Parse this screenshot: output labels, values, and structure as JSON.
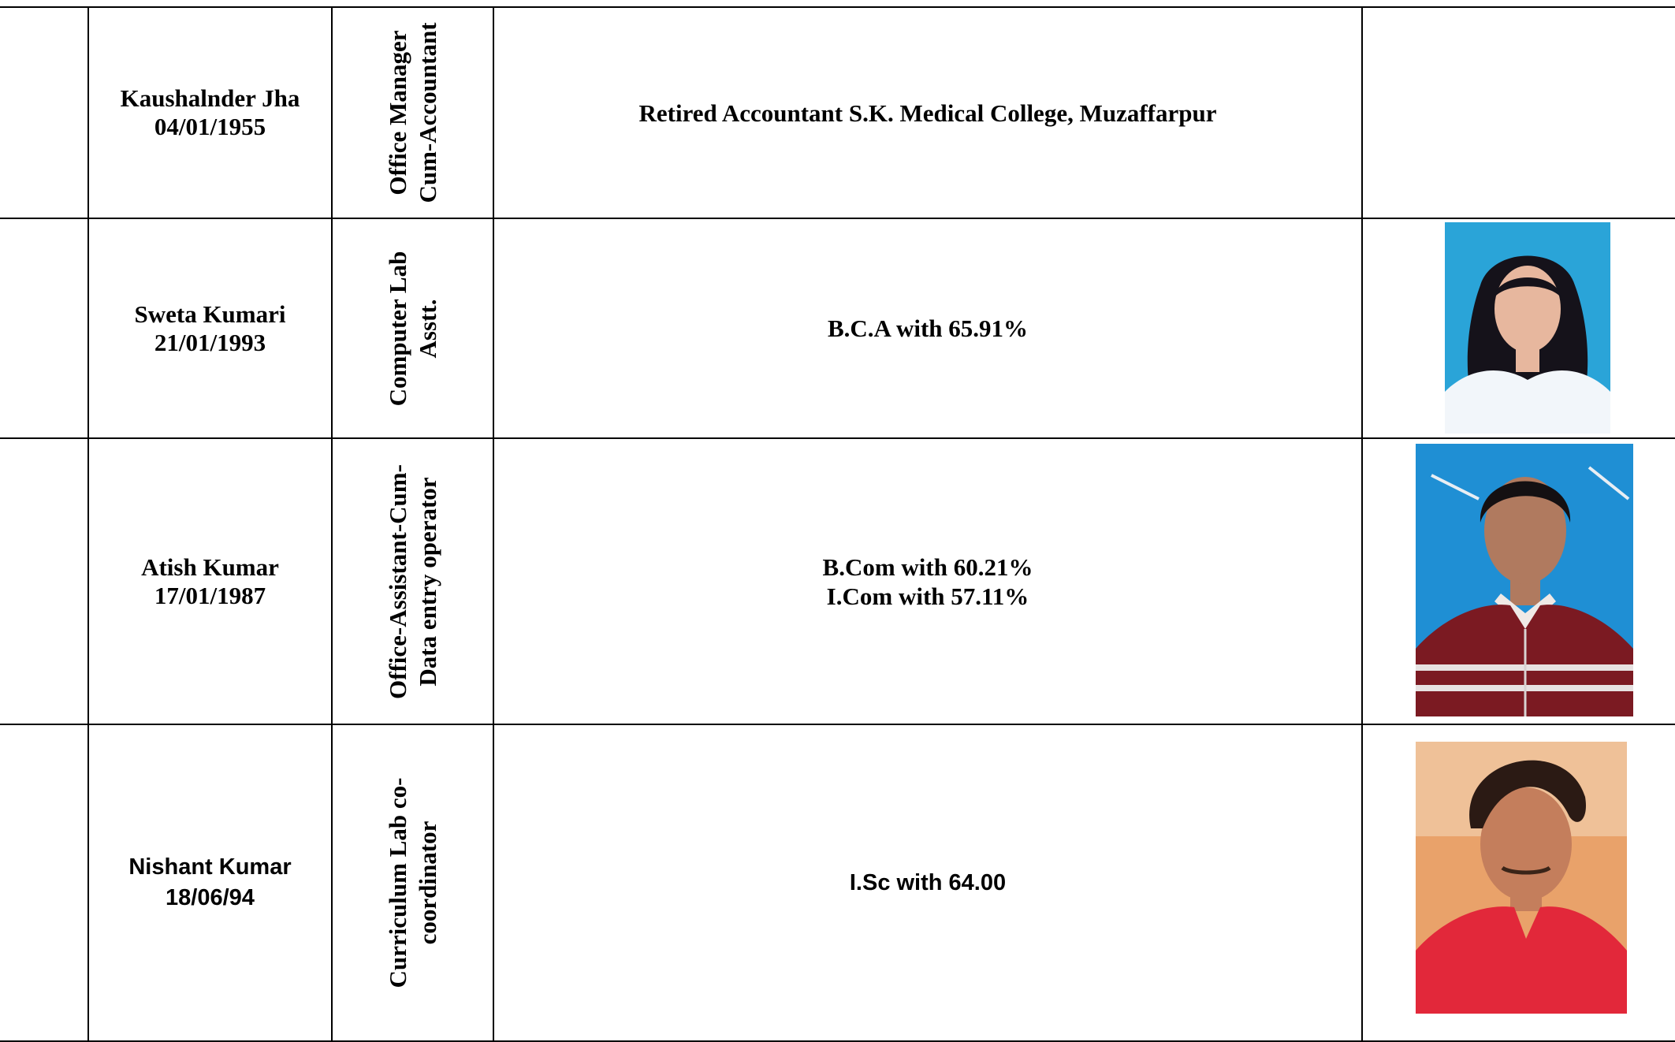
{
  "staff": [
    {
      "name": "Kaushalnder Jha",
      "dob": "04/01/1955",
      "designation": "Office Manager\nCum-Accountant",
      "qualification": "Retired Accountant S.K. Medical College, Muzaffarpur",
      "photo": null
    },
    {
      "name": "Sweta Kumari",
      "dob": "21/01/1993",
      "designation": "Computer Lab\nAsstt.",
      "qualification": "B.C.A with 65.91%",
      "photo": {
        "background": "#2aa4d8",
        "clothing": "#f2f6fa",
        "hair": "#15121a",
        "skin": "#e7b79e"
      }
    },
    {
      "name": "Atish Kumar",
      "dob": "17/01/1987",
      "designation": "Office-Assistant-Cum-\nData entry operator",
      "qualification": "B.Com with 60.21%\nI.Com with 57.11%",
      "photo": {
        "background": "#1f8fd4",
        "clothing": "#7b1a22",
        "hair": "#141012",
        "skin": "#b07a5f"
      }
    },
    {
      "name": "Nishant Kumar",
      "dob": "18/06/94",
      "designation": "Curriculum Lab co-\ncoordinator",
      "qualification": "I.Sc with 64.00",
      "photo": {
        "background": "#e9a26a",
        "clothing": "#e2283a",
        "hair": "#2b1a14",
        "skin": "#c47e5c"
      }
    }
  ]
}
